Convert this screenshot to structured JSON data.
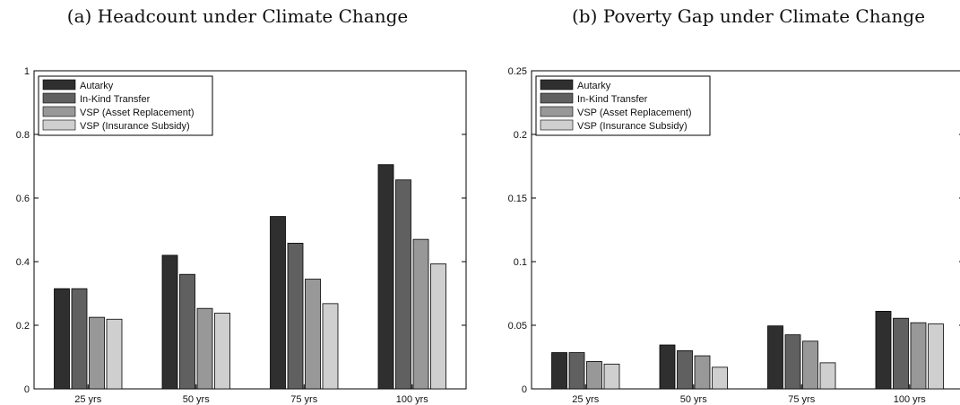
{
  "chart_data": [
    {
      "type": "bar",
      "title": "(a) Headcount under Climate Change",
      "xlabel": "",
      "ylabel": "",
      "categories": [
        "25 yrs",
        "50 yrs",
        "75 yrs",
        "100 yrs"
      ],
      "ylim": [
        0,
        1
      ],
      "yticks": [
        "0",
        "0.2",
        "0.4",
        "0.6",
        "0.8",
        "1"
      ],
      "ytick_values": [
        0,
        0.2,
        0.4,
        0.6,
        0.8,
        1
      ],
      "legend": "top-left",
      "grid": false,
      "series": [
        {
          "name": "Autarky",
          "color": "#2f2f2f",
          "values": [
            0.315,
            0.42,
            0.542,
            0.705
          ]
        },
        {
          "name": "In-Kind Transfer",
          "color": "#606060",
          "values": [
            0.315,
            0.36,
            0.458,
            0.657
          ]
        },
        {
          "name": "VSP (Asset Replacement)",
          "color": "#989898",
          "values": [
            0.225,
            0.253,
            0.345,
            0.47
          ]
        },
        {
          "name": "VSP (Insurance Subsidy)",
          "color": "#cfcfcf",
          "values": [
            0.219,
            0.238,
            0.268,
            0.393
          ]
        }
      ]
    },
    {
      "type": "bar",
      "title": "(b) Poverty Gap under Climate Change",
      "xlabel": "",
      "ylabel": "",
      "categories": [
        "25 yrs",
        "50 yrs",
        "75 yrs",
        "100 yrs"
      ],
      "ylim": [
        0,
        0.25
      ],
      "yticks": [
        "0",
        "0.05",
        "0.1",
        "0.15",
        "0.2",
        "0.25"
      ],
      "ytick_values": [
        0,
        0.05,
        0.1,
        0.15,
        0.2,
        0.25
      ],
      "legend": "top-left",
      "grid": false,
      "series": [
        {
          "name": "Autarky",
          "color": "#2f2f2f",
          "values": [
            0.0285,
            0.0345,
            0.0495,
            0.061
          ]
        },
        {
          "name": "In-Kind Transfer",
          "color": "#606060",
          "values": [
            0.0285,
            0.03,
            0.0425,
            0.0555
          ]
        },
        {
          "name": "VSP (Asset Replacement)",
          "color": "#989898",
          "values": [
            0.0215,
            0.026,
            0.0375,
            0.052
          ]
        },
        {
          "name": "VSP (Insurance Subsidy)",
          "color": "#cfcfcf",
          "values": [
            0.0195,
            0.017,
            0.0205,
            0.051
          ]
        }
      ]
    }
  ]
}
